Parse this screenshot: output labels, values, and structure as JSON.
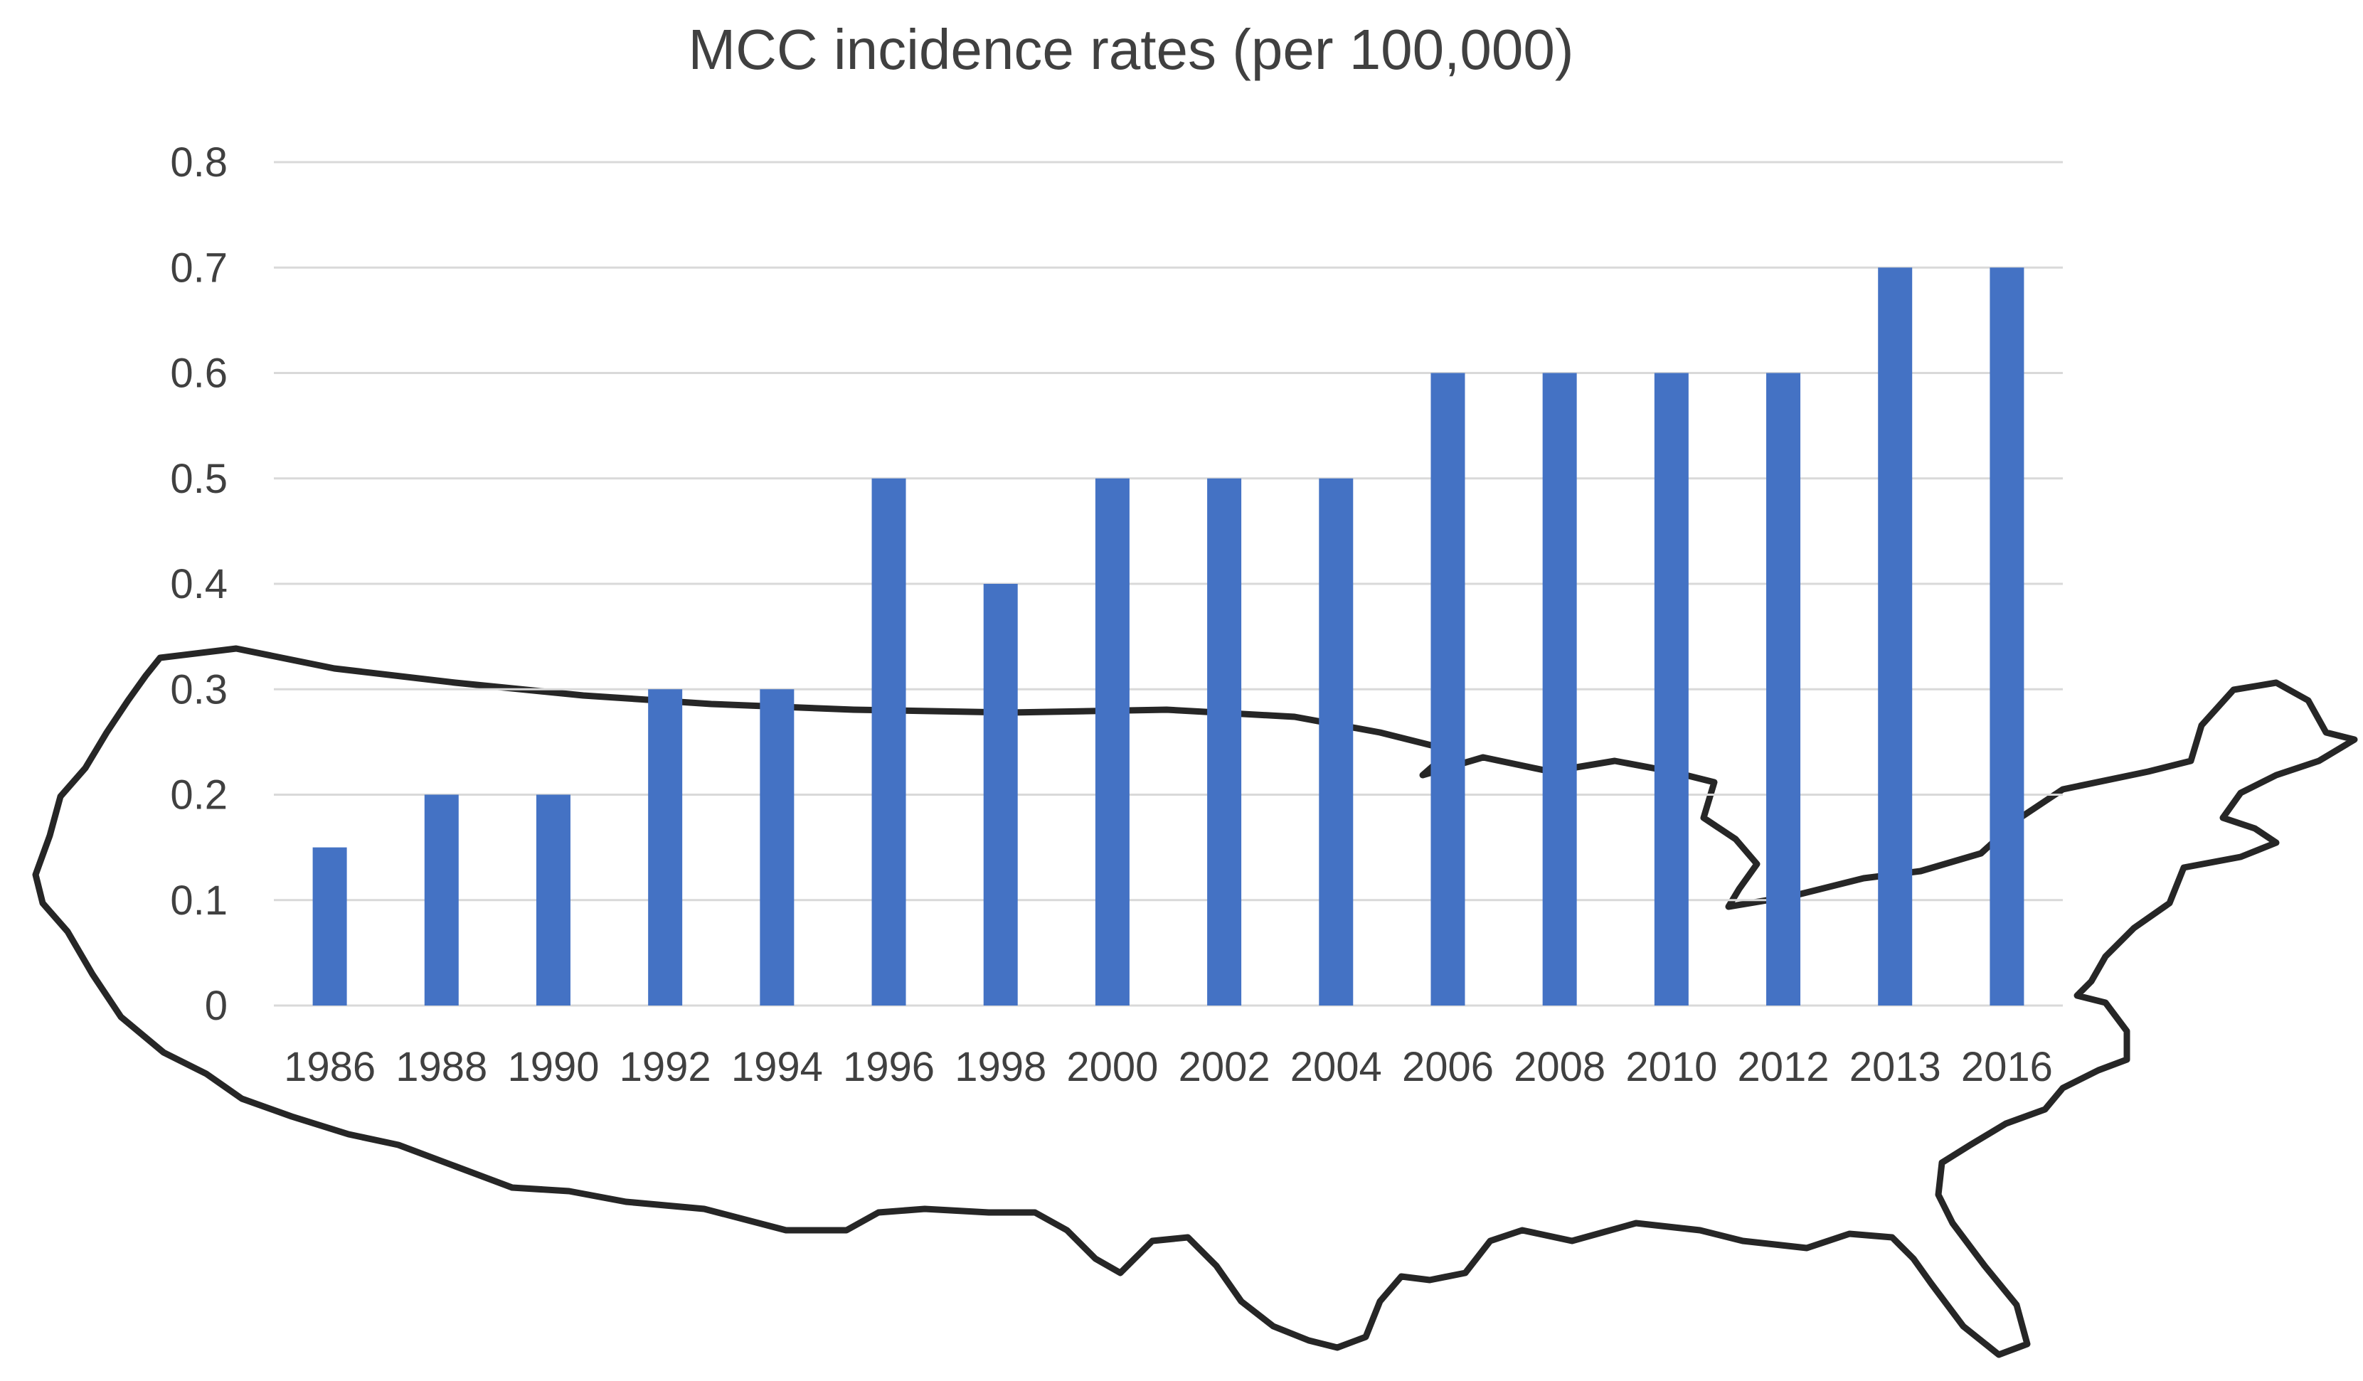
{
  "chart_data": {
    "type": "bar",
    "title": "MCC incidence rates (per 100,000)",
    "xlabel": "",
    "ylabel": "",
    "categories": [
      "1986",
      "1988",
      "1990",
      "1992",
      "1994",
      "1996",
      "1998",
      "2000",
      "2002",
      "2004",
      "2006",
      "2008",
      "2010",
      "2012",
      "2013",
      "2016"
    ],
    "values": [
      0.15,
      0.2,
      0.2,
      0.3,
      0.3,
      0.5,
      0.4,
      0.5,
      0.5,
      0.5,
      0.6,
      0.6,
      0.6,
      0.6,
      0.7,
      0.7
    ],
    "ylim": [
      0,
      0.8
    ],
    "yticks": [
      "0",
      "0.1",
      "0.2",
      "0.3",
      "0.4",
      "0.5",
      "0.6",
      "0.7",
      "0.8"
    ],
    "grid": true,
    "legend": "none",
    "bar_color": "#4472c4",
    "background_decoration": "us-map-outline"
  }
}
